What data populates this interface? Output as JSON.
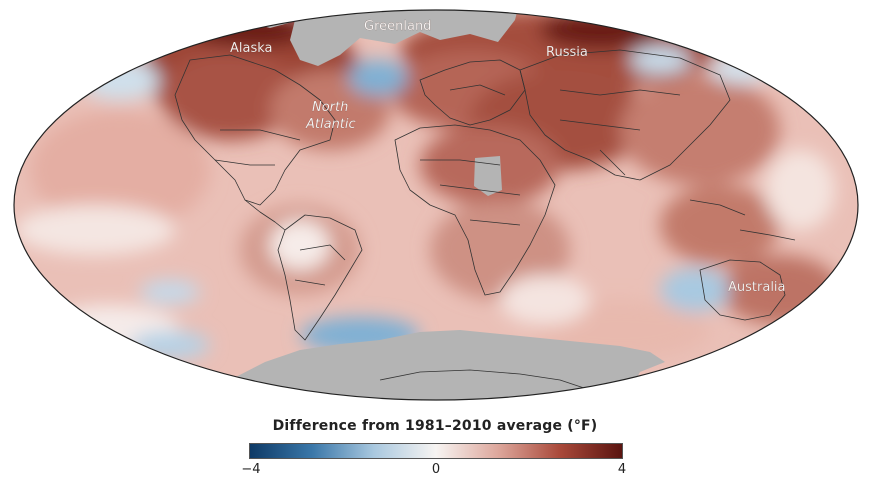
{
  "map": {
    "projection": "Mollweide",
    "labels": {
      "alaska": "Alaska",
      "greenland": "Greenland",
      "russia": "Russia",
      "north_atlantic_line1": "North",
      "north_atlantic_line2": "Atlantic",
      "australia": "Australia"
    },
    "colors": {
      "ocean_base": "#e8b6ad",
      "warm_strong": "#8a3a2c",
      "warm_mid": "#c07a6c",
      "cool": "#9cc3dc",
      "cool_strong": "#5b97c2",
      "no_data": "#b4b4b4",
      "border": "#333333"
    }
  },
  "legend": {
    "title": "Difference from 1981–2010 average (°F)",
    "min_label": "−4",
    "mid_label": "0",
    "max_label": "4",
    "range": [
      -4,
      4
    ],
    "gradient": [
      "#0e3a66",
      "#3a77a9",
      "#a9c8df",
      "#f7f4f2",
      "#dda79c",
      "#a9493a",
      "#5a1410"
    ]
  }
}
